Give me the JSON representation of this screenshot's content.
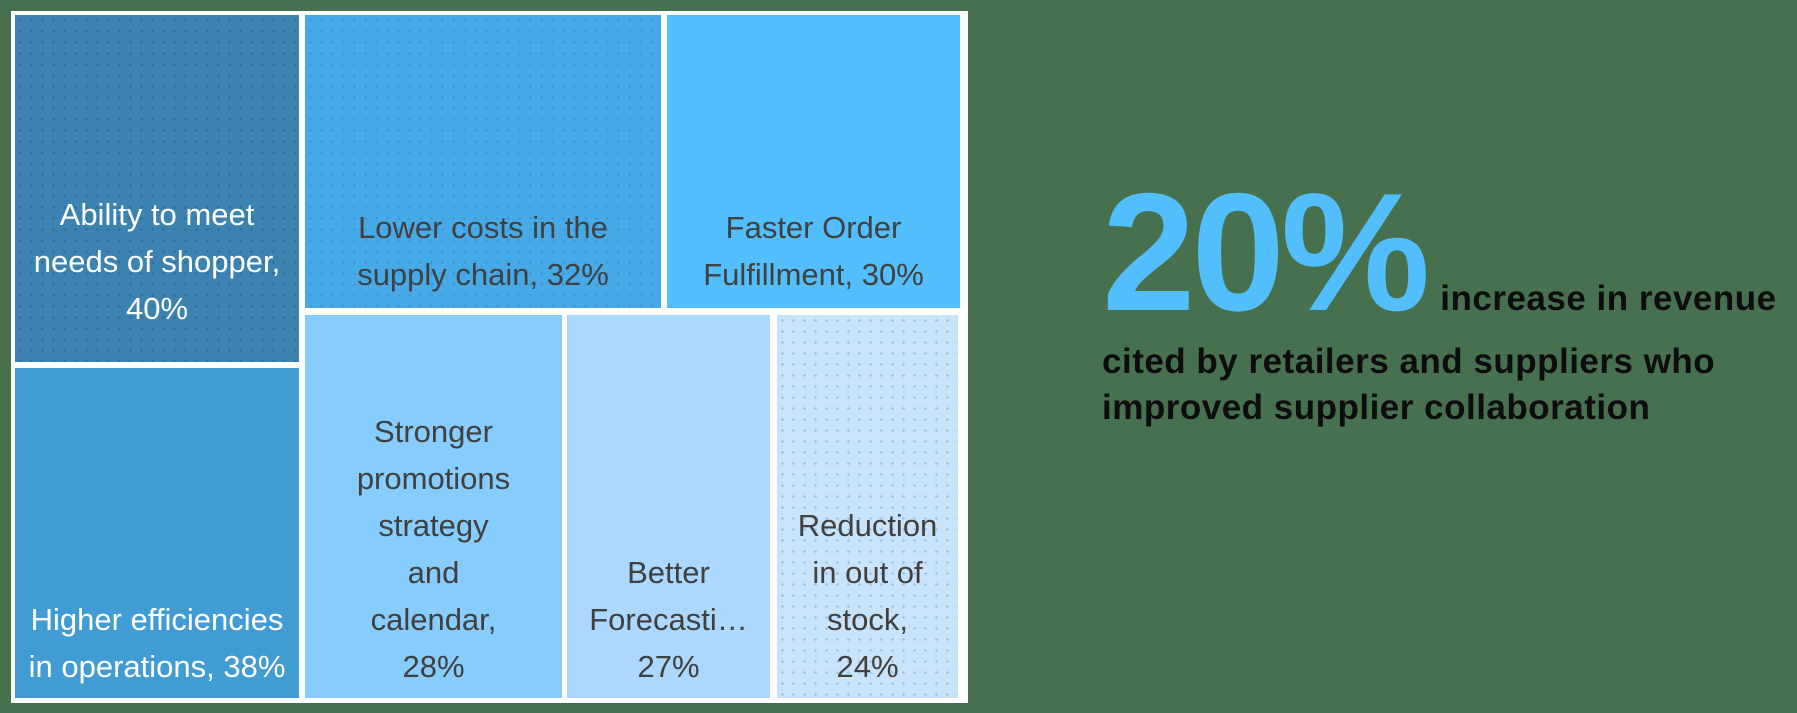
{
  "background_color": "#47704F",
  "chart_data": {
    "type": "treemap",
    "title": "",
    "legend": "none",
    "items": [
      {
        "label": "Ability to meet needs of shopper",
        "value": 40,
        "display": "Ability to meet\nneeds of shopper,\n40%",
        "color": "#3C83B2",
        "text_color": "#FFFFFF",
        "texture": "dots"
      },
      {
        "label": "Higher efficiencies in operations",
        "value": 38,
        "display": "Higher efficiencies\nin operations, 38%",
        "color": "#429CD4",
        "text_color": "#FFFFFF",
        "texture": "flat"
      },
      {
        "label": "Lower costs in the supply chain",
        "value": 32,
        "display": "Lower costs in the\nsupply chain, 32%",
        "color": "#47AAE8",
        "text_color": "#404040",
        "texture": "dots"
      },
      {
        "label": "Faster Order Fulfillment",
        "value": 30,
        "display": "Faster Order\nFulfillment, 30%",
        "color": "#52BFFC",
        "text_color": "#404040",
        "texture": "flat"
      },
      {
        "label": "Stronger promotions strategy and calendar",
        "value": 28,
        "display": "Stronger\npromotions\nstrategy\nand\ncalendar,\n28%",
        "color": "#86CCFC",
        "text_color": "#404040",
        "texture": "flat"
      },
      {
        "label": "Better Forecasting",
        "value": 27,
        "display": "Better\nForecasti…\n27%",
        "color": "#ABD8FC",
        "text_color": "#404040",
        "texture": "flat"
      },
      {
        "label": "Reduction in out of stock",
        "value": 24,
        "display": "Reduction\nin out of\nstock,\n24%",
        "color": "#C9E4FA",
        "text_color": "#404040",
        "texture": "dots"
      }
    ]
  },
  "callout": {
    "stat_value": "20%",
    "stat_suffix": "increase in revenue",
    "description": "cited by retailers and suppliers who\nimproved supplier collaboration",
    "stat_color": "#52BFFC",
    "text_color": "#0D0D0D"
  }
}
